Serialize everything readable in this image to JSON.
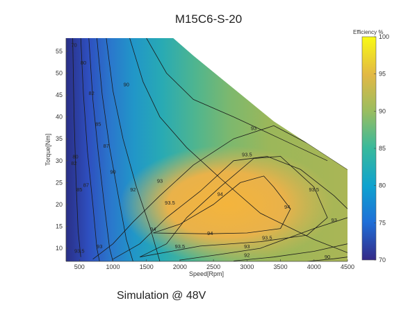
{
  "chart_data": {
    "type": "heatmap",
    "subtype": "filled-contour",
    "title": "M15C6-S-20",
    "xlabel": "Speed[Rpm]",
    "ylabel": "Torque[Nm]",
    "x_ticks": [
      500,
      1000,
      1500,
      2000,
      2500,
      3000,
      3500,
      4000,
      4500
    ],
    "y_ticks": [
      10,
      15,
      20,
      25,
      30,
      35,
      40,
      45,
      50,
      55
    ],
    "xlim": [
      300,
      4500
    ],
    "ylim": [
      7,
      58
    ],
    "colorbar": {
      "label": "Efficiency %",
      "ticks": [
        70,
        75,
        80,
        85,
        90,
        95,
        100
      ],
      "range": [
        70,
        100
      ]
    },
    "max_torque_envelope": [
      [
        1900,
        58
      ],
      [
        2200,
        54
      ],
      [
        2600,
        49
      ],
      [
        3000,
        44
      ],
      [
        3400,
        39
      ],
      [
        3800,
        35
      ],
      [
        4200,
        31
      ],
      [
        4500,
        28
      ]
    ],
    "contour_levels": [
      70,
      75,
      80,
      82,
      85,
      87,
      90,
      92,
      93,
      93.5,
      94
    ],
    "contour_labels": [
      {
        "text": "70",
        "x": 420,
        "y": 56
      },
      {
        "text": "80",
        "x": 560,
        "y": 52
      },
      {
        "text": "82",
        "x": 680,
        "y": 45
      },
      {
        "text": "85",
        "x": 780,
        "y": 38
      },
      {
        "text": "87",
        "x": 900,
        "y": 33
      },
      {
        "text": "90",
        "x": 1200,
        "y": 47
      },
      {
        "text": "90",
        "x": 1000,
        "y": 27
      },
      {
        "text": "92",
        "x": 3300,
        "y": 41
      },
      {
        "text": "92",
        "x": 1300,
        "y": 23
      },
      {
        "text": "93",
        "x": 3100,
        "y": 37
      },
      {
        "text": "93",
        "x": 1700,
        "y": 25
      },
      {
        "text": "93.5",
        "x": 3000,
        "y": 31
      },
      {
        "text": "93.5",
        "x": 1850,
        "y": 20
      },
      {
        "text": "93.5",
        "x": 4000,
        "y": 23
      },
      {
        "text": "93.5",
        "x": 2000,
        "y": 10
      },
      {
        "text": "93.5",
        "x": 3300,
        "y": 12
      },
      {
        "text": "93.5",
        "x": 500,
        "y": 9
      },
      {
        "text": "94",
        "x": 2600,
        "y": 22
      },
      {
        "text": "94",
        "x": 1600,
        "y": 14
      },
      {
        "text": "94",
        "x": 2450,
        "y": 13
      },
      {
        "text": "94",
        "x": 3600,
        "y": 19
      },
      {
        "text": "93",
        "x": 4300,
        "y": 16
      },
      {
        "text": "93",
        "x": 3000,
        "y": 10
      },
      {
        "text": "93",
        "x": 800,
        "y": 10
      },
      {
        "text": "92",
        "x": 3000,
        "y": 8
      },
      {
        "text": "90",
        "x": 4200,
        "y": 7.6
      },
      {
        "text": "87",
        "x": 600,
        "y": 24
      },
      {
        "text": "85",
        "x": 500,
        "y": 23
      },
      {
        "text": "82",
        "x": 420,
        "y": 29
      },
      {
        "text": "80",
        "x": 440,
        "y": 30.5
      }
    ]
  },
  "caption": "Simulation @ 48V"
}
